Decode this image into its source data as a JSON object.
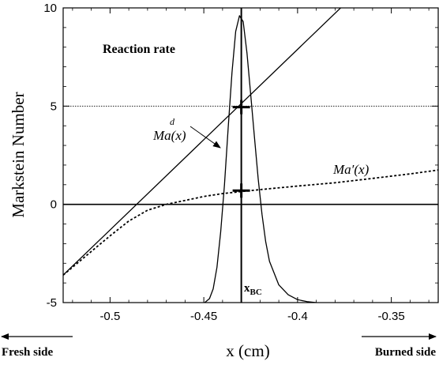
{
  "chart_data": {
    "type": "line",
    "title": "",
    "xlabel": "x (cm)",
    "ylabel": "Markstein Number",
    "xlim": [
      -0.525,
      -0.325
    ],
    "ylim": [
      -5,
      10
    ],
    "x_ticks": [
      -0.5,
      -0.45,
      -0.4,
      -0.35
    ],
    "x_tick_labels": [
      "-0.5",
      "-0.45",
      "-0.4",
      "-0.35"
    ],
    "y_ticks": [
      -5,
      0,
      5,
      10
    ],
    "y_tick_labels": [
      "-5",
      "0",
      "5",
      "10"
    ],
    "grid": false,
    "series": [
      {
        "name": "Ma^d(x)",
        "style": "solid",
        "x": [
          -0.525,
          -0.327
        ],
        "y": [
          -3.6,
          14.6
        ]
      },
      {
        "name": "Ma'(x)",
        "style": "dashed",
        "x": [
          -0.525,
          -0.51,
          -0.5,
          -0.49,
          -0.48,
          -0.47,
          -0.46,
          -0.45,
          -0.44,
          -0.43,
          -0.42,
          -0.4,
          -0.38,
          -0.36,
          -0.34,
          -0.325
        ],
        "y": [
          -3.6,
          -2.4,
          -1.6,
          -0.85,
          -0.3,
          0.0,
          0.2,
          0.4,
          0.55,
          0.65,
          0.75,
          0.93,
          1.1,
          1.32,
          1.55,
          1.75
        ]
      },
      {
        "name": "Reaction rate",
        "style": "solid",
        "x": [
          -0.4495,
          -0.447,
          -0.445,
          -0.443,
          -0.441,
          -0.439,
          -0.437,
          -0.435,
          -0.433,
          -0.431,
          -0.429,
          -0.427,
          -0.425,
          -0.423,
          -0.421,
          -0.419,
          -0.417,
          -0.415,
          -0.41,
          -0.405,
          -0.4,
          -0.395,
          -0.39
        ],
        "y": [
          -5.0,
          -4.8,
          -4.3,
          -3.2,
          -1.4,
          1.0,
          3.9,
          6.7,
          8.8,
          9.6,
          9.3,
          7.7,
          5.6,
          3.4,
          1.3,
          -0.5,
          -1.9,
          -2.9,
          -4.1,
          -4.6,
          -4.85,
          -4.95,
          -5.0
        ]
      }
    ],
    "reference_lines": [
      {
        "orientation": "horizontal",
        "value": 5,
        "style": "dotted"
      },
      {
        "orientation": "horizontal",
        "value": 0,
        "style": "solid"
      },
      {
        "orientation": "vertical",
        "value": -0.43,
        "style": "solid"
      }
    ],
    "markers": [
      {
        "x": -0.43,
        "y": 4.95,
        "shape": "plus"
      },
      {
        "x": -0.43,
        "y": 0.7,
        "shape": "plus"
      }
    ],
    "annotations": {
      "reaction_rate_label": "Reaction rate",
      "mad_label_base": "Ma",
      "mad_label_sup": "d",
      "mad_label_arg": "(x)",
      "maprime_label": "Ma′(x)",
      "xbc_base": "x",
      "xbc_sub": "BC",
      "fresh_side": "Fresh side",
      "burned_side": "Burned side"
    }
  }
}
